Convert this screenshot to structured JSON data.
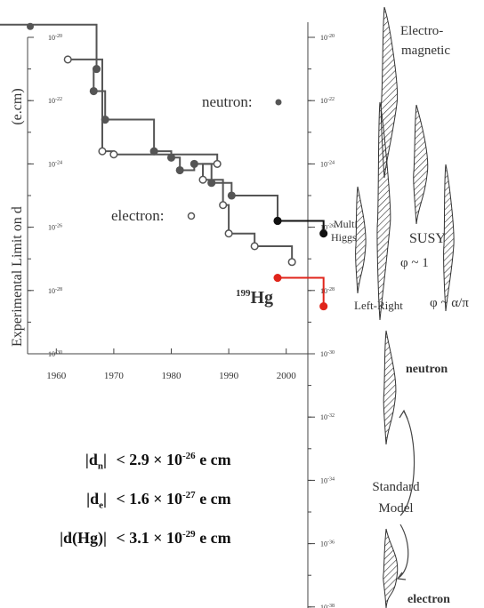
{
  "chart_data": [
    {
      "type": "line",
      "title": "",
      "ylabel": "Experimental Limit on d",
      "ylabel_unit": "(e.cm)",
      "xlabel": "",
      "xlim": [
        1955,
        2005
      ],
      "ylim_log10": [
        -30,
        -19.6
      ],
      "x_ticks": [
        "1960",
        "1970",
        "1980",
        "1990",
        "2000"
      ],
      "y_ticks": [
        {
          "base": "10",
          "exp": "-20",
          "value": -20
        },
        {
          "base": "10",
          "exp": "-22",
          "value": -22
        },
        {
          "base": "10",
          "exp": "-24",
          "value": -24
        },
        {
          "base": "10",
          "exp": "-26",
          "value": -26
        },
        {
          "base": "10",
          "exp": "-28",
          "value": -28
        },
        {
          "base": "10",
          "exp": "-30",
          "value": -30
        }
      ],
      "series": [
        {
          "name": "neutron",
          "marker": "filled",
          "color": "#555555",
          "points": [
            {
              "x": 1950,
              "y": -19.6
            },
            {
              "x": 1967,
              "y": -21.0
            },
            {
              "x": 1966.5,
              "y": -21.7
            },
            {
              "x": 1968.5,
              "y": -22.6
            },
            {
              "x": 1977,
              "y": -23.6
            },
            {
              "x": 1980,
              "y": -23.8
            },
            {
              "x": 1981.5,
              "y": -24.2
            },
            {
              "x": 1984,
              "y": -24.0
            },
            {
              "x": 1987,
              "y": -24.6
            },
            {
              "x": 1990.5,
              "y": -25.0
            },
            {
              "x": 1998.5,
              "y": -25.8
            }
          ]
        },
        {
          "name": "electron",
          "marker": "open",
          "color": "#555555",
          "points": [
            {
              "x": 1962,
              "y": -20.7
            },
            {
              "x": 1968,
              "y": -23.6
            },
            {
              "x": 1970,
              "y": -23.7
            },
            {
              "x": 1988,
              "y": -24.0
            },
            {
              "x": 1985.5,
              "y": -24.5
            },
            {
              "x": 1989,
              "y": -25.3
            },
            {
              "x": 1990,
              "y": -26.2
            },
            {
              "x": 1994.5,
              "y": -26.6
            },
            {
              "x": 2001,
              "y": -27.1
            }
          ]
        },
        {
          "name": "199Hg",
          "marker": "filled",
          "color": "#e0251b",
          "points": [
            {
              "x": 1998.5,
              "y": -27.6
            },
            {
              "x": 2006.5,
              "y": -28.5
            }
          ]
        },
        {
          "name": "Multi Higgs",
          "marker": "filled",
          "color": "#111111",
          "points": [
            {
              "x": 1998.5,
              "y": -25.8
            },
            {
              "x": 2006.5,
              "y": -26.2
            }
          ]
        }
      ],
      "annotations": {
        "neutron_label": "neutron:",
        "electron_label": "electron:",
        "hg_mass": "199",
        "hg_label": "Hg"
      }
    },
    {
      "type": "area",
      "title": "",
      "ylim_log10": [
        -39,
        -19.6
      ],
      "y_ticks": [
        {
          "base": "10",
          "exp": "-20",
          "value": -20
        },
        {
          "base": "10",
          "exp": "-22",
          "value": -22
        },
        {
          "base": "10",
          "exp": "-24",
          "value": -24
        },
        {
          "base": "10",
          "exp": "-26",
          "value": -26
        },
        {
          "base": "10",
          "exp": "-28",
          "value": -28
        },
        {
          "base": "10",
          "exp": "-30",
          "value": -30
        },
        {
          "base": "10",
          "exp": "-32",
          "value": -32
        },
        {
          "base": "10",
          "exp": "-34",
          "value": -34
        },
        {
          "base": "10",
          "exp": "-36",
          "value": -36
        },
        {
          "base": "10",
          "exp": "-38",
          "value": -38
        }
      ],
      "theory_labels": {
        "electromagnetic": [
          "Electro-",
          "magnetic"
        ],
        "multi_higgs": [
          "Multi",
          "Higgs"
        ],
        "susy": "SUSY",
        "susy_phi": "φ ~ 1",
        "left_right": "Left-Right",
        "phi_alpha_pi": "φ ~ α/π",
        "neutron": "neutron",
        "standard_model": [
          "Standard",
          "Model"
        ],
        "electron": "electron"
      }
    }
  ],
  "limits": [
    {
      "quantity": "d",
      "sub": "n",
      "text": "< 2.9 × 10",
      "exp": "-26",
      "unit": "e cm"
    },
    {
      "quantity": "d",
      "sub": "e",
      "text": "< 1.6 × 10",
      "exp": "-27",
      "unit": "e cm"
    },
    {
      "quantity": "d(Hg)",
      "sub": "",
      "text": "< 3.1 × 10",
      "exp": "-29",
      "unit": "e cm"
    }
  ]
}
